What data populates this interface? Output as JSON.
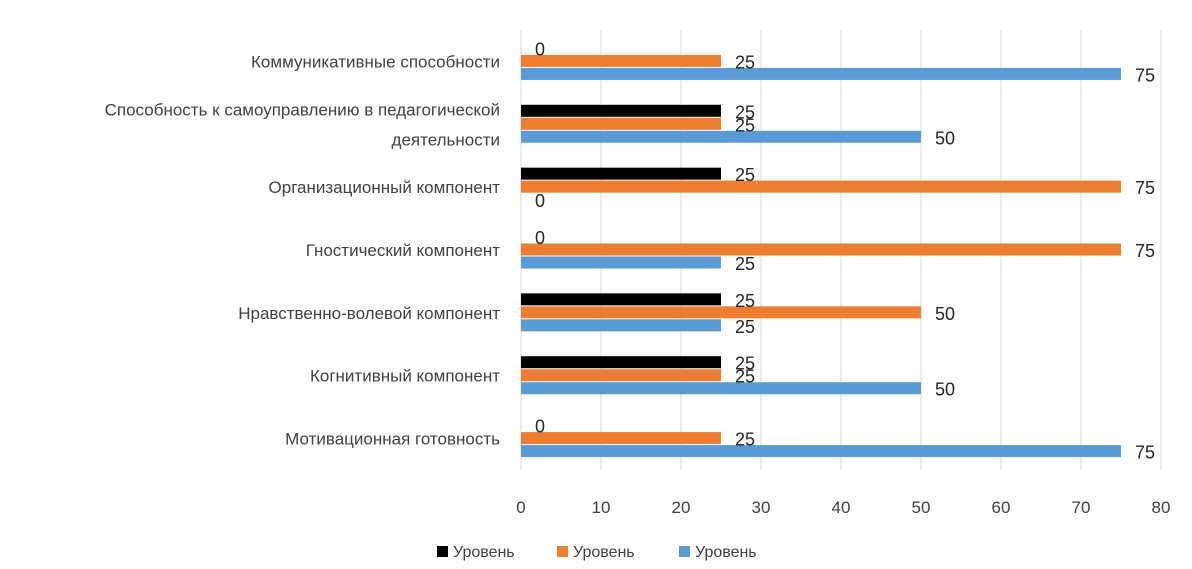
{
  "chart_data": {
    "type": "bar",
    "orientation": "horizontal",
    "categories": [
      "Мотивационная готовность",
      "Когнитивный компонент",
      "Нравственно-волевой компонент",
      "Гностический компонент",
      "Организационный компонент",
      [
        "Способность к самоуправлению в педагогической",
        "деятельности"
      ],
      "Коммуникативные способности"
    ],
    "series": [
      {
        "name": "Уровень",
        "color": "#000000",
        "values": [
          0,
          25,
          25,
          0,
          25,
          25,
          0
        ]
      },
      {
        "name": "Уровень",
        "color": "#ed7d31",
        "values": [
          25,
          25,
          50,
          75,
          75,
          25,
          25
        ]
      },
      {
        "name": "Уровень",
        "color": "#5b9bd5",
        "values": [
          75,
          50,
          25,
          25,
          0,
          50,
          75
        ]
      }
    ],
    "xlim": [
      0,
      80
    ],
    "xticks": [
      0,
      10,
      20,
      30,
      40,
      50,
      60,
      70,
      80
    ],
    "grid": true,
    "legend": "bottom",
    "data_labels": true
  }
}
